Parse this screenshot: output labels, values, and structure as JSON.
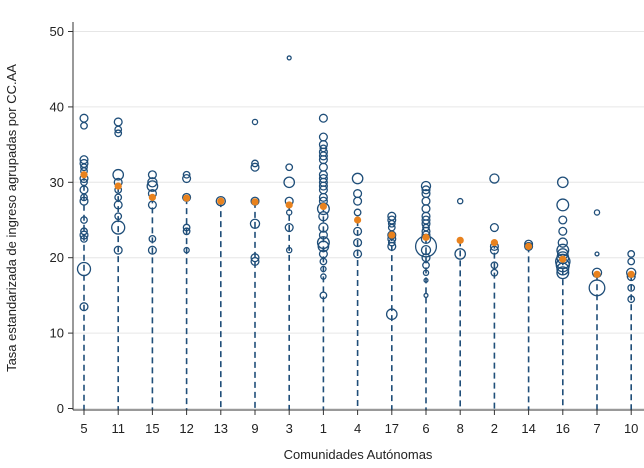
{
  "chart_data": {
    "type": "scatter",
    "title": "",
    "xlabel": "Comunidades Autónomas",
    "ylabel": "Tasa estandarizada de ingreso agrupadas por CC.AA",
    "ylim": [
      0,
      50
    ],
    "yticks": [
      0,
      10,
      20,
      30,
      40,
      50
    ],
    "grid": true,
    "legend": "none",
    "colors": {
      "circles": "#1f4e79",
      "mean": "#e8821e",
      "grid": "#e6e6e6",
      "stem": "#1f4e79"
    },
    "categories": [
      "5",
      "11",
      "15",
      "12",
      "13",
      "9",
      "3",
      "1",
      "4",
      "17",
      "6",
      "8",
      "2",
      "14",
      "16",
      "7",
      "10"
    ],
    "means": [
      31,
      29.5,
      28,
      27.9,
      27.5,
      27.4,
      27,
      26.8,
      25,
      23,
      22.7,
      22.3,
      22,
      21.5,
      19.8,
      17.8,
      17.8
    ],
    "stem_top": [
      31,
      29.5,
      28,
      27.9,
      27.5,
      27.4,
      27,
      26.8,
      25,
      23,
      22.7,
      22.3,
      22,
      21.5,
      19.8,
      17.8,
      17.8
    ],
    "points": [
      [
        [
          38.5,
          0.6
        ],
        [
          37.5,
          0.5
        ],
        [
          33,
          0.6
        ],
        [
          32.5,
          0.6
        ],
        [
          32,
          0.5
        ],
        [
          31.5,
          0.5
        ],
        [
          30.5,
          0.6
        ],
        [
          30,
          0.5
        ],
        [
          29,
          0.6
        ],
        [
          28,
          0.5
        ],
        [
          27.5,
          0.6
        ],
        [
          25,
          0.5
        ],
        [
          23.5,
          0.5
        ],
        [
          23,
          0.6
        ],
        [
          22.5,
          0.5
        ],
        [
          18.5,
          1.0
        ],
        [
          13.5,
          0.6
        ]
      ],
      [
        [
          38,
          0.6
        ],
        [
          37,
          0.5
        ],
        [
          36.5,
          0.5
        ],
        [
          31,
          0.8
        ],
        [
          30,
          0.6
        ],
        [
          29,
          0.5
        ],
        [
          28,
          0.5
        ],
        [
          27,
          0.6
        ],
        [
          25.5,
          0.5
        ],
        [
          24,
          1.0
        ],
        [
          21,
          0.6
        ]
      ],
      [
        [
          31,
          0.6
        ],
        [
          30,
          0.7
        ],
        [
          29.5,
          0.8
        ],
        [
          28.5,
          0.6
        ],
        [
          27,
          0.6
        ],
        [
          22.5,
          0.5
        ],
        [
          21,
          0.6
        ]
      ],
      [
        [
          31,
          0.5
        ],
        [
          30.5,
          0.6
        ],
        [
          28,
          0.6
        ],
        [
          24,
          0.5
        ],
        [
          23.5,
          0.5
        ],
        [
          21,
          0.4
        ]
      ],
      [
        [
          27.5,
          0.7
        ]
      ],
      [
        [
          38,
          0.4
        ],
        [
          32.5,
          0.5
        ],
        [
          32,
          0.6
        ],
        [
          27.5,
          0.6
        ],
        [
          24.5,
          0.7
        ],
        [
          20,
          0.6
        ],
        [
          19.5,
          0.6
        ]
      ],
      [
        [
          46.5,
          0.3
        ],
        [
          32,
          0.5
        ],
        [
          30,
          0.8
        ],
        [
          27.5,
          0.6
        ],
        [
          26,
          0.4
        ],
        [
          24,
          0.6
        ],
        [
          21,
          0.4
        ]
      ],
      [
        [
          38.5,
          0.6
        ],
        [
          36,
          0.6
        ],
        [
          35,
          0.6
        ],
        [
          34.5,
          0.5
        ],
        [
          34,
          0.6
        ],
        [
          33.5,
          0.6
        ],
        [
          33,
          0.6
        ],
        [
          32,
          0.6
        ],
        [
          31,
          0.6
        ],
        [
          30.5,
          0.6
        ],
        [
          30,
          0.6
        ],
        [
          29.5,
          0.6
        ],
        [
          29,
          0.6
        ],
        [
          28,
          0.6
        ],
        [
          27.5,
          0.6
        ],
        [
          26.5,
          0.9
        ],
        [
          25.5,
          0.7
        ],
        [
          24,
          0.7
        ],
        [
          23,
          0.6
        ],
        [
          22,
          0.9
        ],
        [
          21.5,
          0.8
        ],
        [
          20.5,
          0.6
        ],
        [
          19.5,
          0.5
        ],
        [
          18.5,
          0.4
        ],
        [
          17.5,
          0.4
        ],
        [
          15,
          0.5
        ]
      ],
      [
        [
          30.5,
          0.8
        ],
        [
          28.5,
          0.6
        ],
        [
          27.5,
          0.6
        ],
        [
          26,
          0.5
        ],
        [
          23.5,
          0.6
        ],
        [
          22,
          0.6
        ],
        [
          20.5,
          0.6
        ]
      ],
      [
        [
          25.5,
          0.6
        ],
        [
          25,
          0.6
        ],
        [
          24.5,
          0.5
        ],
        [
          24,
          0.5
        ],
        [
          23,
          0.6
        ],
        [
          22.5,
          0.6
        ],
        [
          22,
          0.5
        ],
        [
          21.5,
          0.6
        ],
        [
          12.5,
          0.8
        ]
      ],
      [
        [
          29.5,
          0.7
        ],
        [
          29,
          0.6
        ],
        [
          28.5,
          0.6
        ],
        [
          27.5,
          0.6
        ],
        [
          26.5,
          0.6
        ],
        [
          25.5,
          0.6
        ],
        [
          25,
          0.6
        ],
        [
          24.5,
          0.6
        ],
        [
          24,
          0.5
        ],
        [
          23.5,
          0.6
        ],
        [
          23,
          0.6
        ],
        [
          22.5,
          0.7
        ],
        [
          21.5,
          1.6
        ],
        [
          21,
          0.7
        ],
        [
          20,
          0.6
        ],
        [
          19,
          0.5
        ],
        [
          18,
          0.4
        ],
        [
          17,
          0.3
        ],
        [
          15,
          0.3
        ]
      ],
      [
        [
          27.5,
          0.4
        ],
        [
          20.5,
          0.8
        ]
      ],
      [
        [
          30.5,
          0.7
        ],
        [
          24,
          0.6
        ],
        [
          21.5,
          0.6
        ],
        [
          21,
          0.6
        ],
        [
          19,
          0.5
        ],
        [
          18,
          0.5
        ]
      ],
      [
        [
          21.8,
          0.6
        ],
        [
          21.5,
          0.6
        ]
      ],
      [
        [
          30,
          0.8
        ],
        [
          27,
          0.9
        ],
        [
          25,
          0.6
        ],
        [
          23.5,
          0.6
        ],
        [
          22,
          0.7
        ],
        [
          21,
          0.9
        ],
        [
          20.5,
          0.8
        ],
        [
          20,
          0.9
        ],
        [
          19.5,
          1.1
        ],
        [
          19,
          1.0
        ],
        [
          18.5,
          0.9
        ],
        [
          18,
          0.9
        ]
      ],
      [
        [
          26,
          0.4
        ],
        [
          20.5,
          0.3
        ],
        [
          18,
          0.7
        ],
        [
          16,
          1.2
        ]
      ],
      [
        [
          20.5,
          0.5
        ],
        [
          19.5,
          0.5
        ],
        [
          18,
          0.7
        ],
        [
          17.5,
          0.6
        ],
        [
          16,
          0.5
        ],
        [
          14.5,
          0.5
        ]
      ]
    ]
  }
}
